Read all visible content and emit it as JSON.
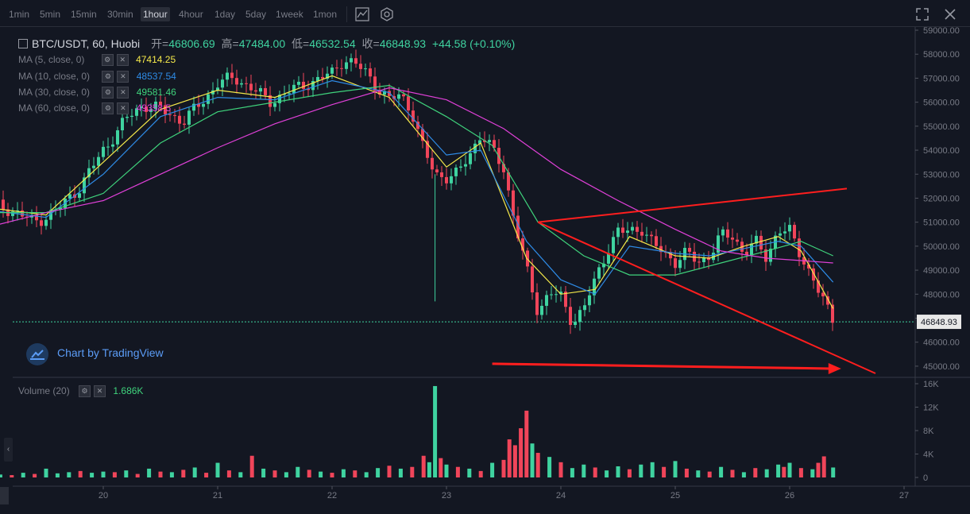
{
  "toolbar": {
    "intervals": [
      "1min",
      "5min",
      "15min",
      "30min",
      "1hour",
      "4hour",
      "1day",
      "5day",
      "1week",
      "1mon"
    ],
    "active_interval": "1hour"
  },
  "header": {
    "title": "BTC/USDT, 60, Huobi",
    "open_label": "开=",
    "open": "46806.69",
    "high_label": "高=",
    "high": "47484.00",
    "low_label": "低=",
    "low": "46532.54",
    "close_label": "收=",
    "close": "46848.93",
    "change": "+44.58 (+0.10%)"
  },
  "indicators": [
    {
      "label": "MA (5, close, 0)",
      "value": "47414.25",
      "color": "#f5e94a"
    },
    {
      "label": "MA (10, close, 0)",
      "value": "48537.54",
      "color": "#2e8be6"
    },
    {
      "label": "MA (30, close, 0)",
      "value": "49581.46",
      "color": "#3fd37c"
    },
    {
      "label": "MA (60, close, 0)",
      "value": "49358.5",
      "color": "#e040d8"
    }
  ],
  "volume": {
    "label": "Volume (20)",
    "value": "1.686K"
  },
  "watermark": "Chart by TradingView",
  "price_tag": "46848.93",
  "chart_data": {
    "type": "candlestick",
    "price_axis": {
      "ticks": [
        "59000.00",
        "58000.00",
        "57000.00",
        "56000.00",
        "55000.00",
        "54000.00",
        "53000.00",
        "52000.00",
        "51000.00",
        "50000.00",
        "49000.00",
        "48000.00",
        "47000.00",
        "46000.00",
        "45000.00"
      ],
      "range": [
        44600,
        59100
      ]
    },
    "volume_axis": {
      "ticks": [
        "16K",
        "12K",
        "8K",
        "4K",
        "0"
      ],
      "range": [
        0,
        16000
      ]
    },
    "x_ticks": [
      "20",
      "21",
      "22",
      "23",
      "24",
      "25",
      "26",
      "27"
    ],
    "last_price": 46848.93,
    "colors": {
      "up": "#26a69a",
      "down": "#ef5350",
      "bull_candle": "#3fd3a0",
      "bear_candle": "#f0455a",
      "annotation": "#ff1e1e"
    },
    "price_path": [
      [
        19.0,
        51800
      ],
      [
        19.2,
        51500
      ],
      [
        19.4,
        51000
      ],
      [
        19.6,
        51500
      ],
      [
        19.8,
        52500
      ],
      [
        20.0,
        54000
      ],
      [
        20.2,
        55300
      ],
      [
        20.35,
        55900
      ],
      [
        20.5,
        55700
      ],
      [
        20.7,
        55200
      ],
      [
        20.9,
        56200
      ],
      [
        21.0,
        56800
      ],
      [
        21.15,
        57000
      ],
      [
        21.3,
        56600
      ],
      [
        21.45,
        56000
      ],
      [
        21.6,
        56400
      ],
      [
        21.8,
        56800
      ],
      [
        22.0,
        57200
      ],
      [
        22.1,
        57800
      ],
      [
        22.2,
        57600
      ],
      [
        22.3,
        57200
      ],
      [
        22.4,
        56600
      ],
      [
        22.5,
        56100
      ],
      [
        22.6,
        56300
      ],
      [
        22.7,
        55600
      ],
      [
        22.8,
        54000
      ],
      [
        22.9,
        53000
      ],
      [
        23.0,
        52900
      ],
      [
        23.1,
        53000
      ],
      [
        23.2,
        53800
      ],
      [
        23.3,
        54700
      ],
      [
        23.4,
        54000
      ],
      [
        23.5,
        53200
      ],
      [
        23.6,
        51000
      ],
      [
        23.7,
        49000
      ],
      [
        23.8,
        47200
      ],
      [
        23.9,
        48200
      ],
      [
        24.0,
        47800
      ],
      [
        24.1,
        46800
      ],
      [
        24.2,
        47500
      ],
      [
        24.3,
        48500
      ],
      [
        24.4,
        49800
      ],
      [
        24.5,
        50700
      ],
      [
        24.6,
        50500
      ],
      [
        24.7,
        50800
      ],
      [
        24.8,
        50200
      ],
      [
        24.9,
        49600
      ],
      [
        25.0,
        49400
      ],
      [
        25.1,
        49800
      ],
      [
        25.2,
        49200
      ],
      [
        25.3,
        49700
      ],
      [
        25.4,
        50500
      ],
      [
        25.5,
        50300
      ],
      [
        25.6,
        49800
      ],
      [
        25.7,
        50200
      ],
      [
        25.8,
        49400
      ],
      [
        25.9,
        50800
      ],
      [
        26.0,
        50600
      ],
      [
        26.1,
        49500
      ],
      [
        26.2,
        48800
      ],
      [
        26.3,
        47600
      ],
      [
        26.38,
        46850
      ]
    ],
    "ma_lines": [
      {
        "name": "MA (5, close, 0)",
        "color": "#f5e94a",
        "points": [
          [
            19.0,
            51600
          ],
          [
            19.5,
            51300
          ],
          [
            20.0,
            53500
          ],
          [
            20.5,
            55700
          ],
          [
            21.0,
            56500
          ],
          [
            21.5,
            56200
          ],
          [
            22.0,
            57100
          ],
          [
            22.5,
            56200
          ],
          [
            23.0,
            53300
          ],
          [
            23.3,
            54300
          ],
          [
            23.7,
            49500
          ],
          [
            24.0,
            48000
          ],
          [
            24.3,
            48200
          ],
          [
            24.6,
            50400
          ],
          [
            25.0,
            49600
          ],
          [
            25.3,
            49500
          ],
          [
            25.6,
            50000
          ],
          [
            25.9,
            50400
          ],
          [
            26.1,
            49800
          ],
          [
            26.38,
            47400
          ]
        ]
      },
      {
        "name": "MA (10, close, 0)",
        "color": "#2e8be6",
        "points": [
          [
            19.0,
            51500
          ],
          [
            19.5,
            51200
          ],
          [
            20.0,
            53000
          ],
          [
            20.5,
            55400
          ],
          [
            21.0,
            56200
          ],
          [
            21.5,
            56100
          ],
          [
            22.0,
            56900
          ],
          [
            22.5,
            56400
          ],
          [
            23.0,
            53800
          ],
          [
            23.3,
            54000
          ],
          [
            23.7,
            50200
          ],
          [
            24.0,
            48600
          ],
          [
            24.3,
            48000
          ],
          [
            24.6,
            50000
          ],
          [
            25.0,
            49700
          ],
          [
            25.3,
            49600
          ],
          [
            25.6,
            49900
          ],
          [
            25.9,
            50200
          ],
          [
            26.1,
            50000
          ],
          [
            26.38,
            48500
          ]
        ]
      },
      {
        "name": "MA (30, close, 0)",
        "color": "#3fd37c",
        "points": [
          [
            19.0,
            51400
          ],
          [
            19.5,
            51400
          ],
          [
            20.0,
            52200
          ],
          [
            20.5,
            54300
          ],
          [
            21.0,
            55600
          ],
          [
            21.5,
            56000
          ],
          [
            22.0,
            56400
          ],
          [
            22.5,
            56700
          ],
          [
            23.0,
            55400
          ],
          [
            23.4,
            54200
          ],
          [
            23.8,
            51000
          ],
          [
            24.2,
            49600
          ],
          [
            24.6,
            48800
          ],
          [
            25.0,
            48800
          ],
          [
            25.4,
            49300
          ],
          [
            25.8,
            49800
          ],
          [
            26.1,
            50200
          ],
          [
            26.38,
            49600
          ]
        ]
      },
      {
        "name": "MA (60, close, 0)",
        "color": "#e040d8",
        "points": [
          [
            19.0,
            50800
          ],
          [
            19.5,
            51400
          ],
          [
            20.0,
            51900
          ],
          [
            20.5,
            53000
          ],
          [
            21.0,
            54100
          ],
          [
            21.5,
            55100
          ],
          [
            22.0,
            55900
          ],
          [
            22.5,
            56600
          ],
          [
            23.0,
            56100
          ],
          [
            23.5,
            54900
          ],
          [
            24.0,
            53200
          ],
          [
            24.5,
            51900
          ],
          [
            25.0,
            50700
          ],
          [
            25.4,
            49800
          ],
          [
            25.8,
            49500
          ],
          [
            26.1,
            49400
          ],
          [
            26.38,
            49300
          ]
        ]
      }
    ],
    "volume_bars": [
      [
        19.0,
        300,
        0
      ],
      [
        19.1,
        500,
        1
      ],
      [
        19.2,
        400,
        0
      ],
      [
        19.3,
        800,
        1
      ],
      [
        19.4,
        600,
        0
      ],
      [
        19.5,
        1500,
        1
      ],
      [
        19.6,
        700,
        1
      ],
      [
        19.7,
        900,
        1
      ],
      [
        19.8,
        1100,
        0
      ],
      [
        19.9,
        800,
        1
      ],
      [
        20.0,
        1000,
        1
      ],
      [
        20.1,
        900,
        0
      ],
      [
        20.2,
        1200,
        1
      ],
      [
        20.3,
        600,
        0
      ],
      [
        20.4,
        1500,
        1
      ],
      [
        20.5,
        1000,
        0
      ],
      [
        20.6,
        900,
        1
      ],
      [
        20.7,
        1300,
        0
      ],
      [
        20.8,
        1700,
        1
      ],
      [
        20.9,
        800,
        0
      ],
      [
        21.0,
        2500,
        1
      ],
      [
        21.1,
        1200,
        0
      ],
      [
        21.2,
        900,
        1
      ],
      [
        21.3,
        3700,
        0
      ],
      [
        21.4,
        1500,
        1
      ],
      [
        21.5,
        1200,
        0
      ],
      [
        21.6,
        900,
        1
      ],
      [
        21.7,
        1800,
        1
      ],
      [
        21.8,
        1300,
        0
      ],
      [
        21.9,
        1000,
        1
      ],
      [
        22.0,
        800,
        0
      ],
      [
        22.1,
        1400,
        1
      ],
      [
        22.2,
        1200,
        0
      ],
      [
        22.3,
        900,
        1
      ],
      [
        22.4,
        1600,
        1
      ],
      [
        22.5,
        2000,
        0
      ],
      [
        22.6,
        1500,
        1
      ],
      [
        22.7,
        1800,
        0
      ],
      [
        22.8,
        3700,
        0
      ],
      [
        22.85,
        2600,
        1
      ],
      [
        22.9,
        15600,
        1
      ],
      [
        22.95,
        3300,
        0
      ],
      [
        23.0,
        2200,
        1
      ],
      [
        23.1,
        1800,
        0
      ],
      [
        23.2,
        1500,
        1
      ],
      [
        23.3,
        1100,
        0
      ],
      [
        23.4,
        2500,
        1
      ],
      [
        23.5,
        3000,
        0
      ],
      [
        23.55,
        6500,
        0
      ],
      [
        23.6,
        5500,
        0
      ],
      [
        23.65,
        8400,
        0
      ],
      [
        23.7,
        11400,
        0
      ],
      [
        23.75,
        5800,
        1
      ],
      [
        23.8,
        4200,
        0
      ],
      [
        23.9,
        3500,
        1
      ],
      [
        24.0,
        2600,
        0
      ],
      [
        24.1,
        1600,
        1
      ],
      [
        24.2,
        2200,
        1
      ],
      [
        24.3,
        1700,
        0
      ],
      [
        24.4,
        1200,
        1
      ],
      [
        24.5,
        1900,
        1
      ],
      [
        24.6,
        1400,
        0
      ],
      [
        24.7,
        2200,
        1
      ],
      [
        24.8,
        2600,
        1
      ],
      [
        24.9,
        1800,
        0
      ],
      [
        25.0,
        2800,
        1
      ],
      [
        25.1,
        1500,
        0
      ],
      [
        25.2,
        1200,
        1
      ],
      [
        25.3,
        1000,
        0
      ],
      [
        25.4,
        1800,
        1
      ],
      [
        25.5,
        1300,
        0
      ],
      [
        25.6,
        900,
        1
      ],
      [
        25.7,
        1600,
        0
      ],
      [
        25.8,
        1400,
        1
      ],
      [
        25.9,
        2200,
        1
      ],
      [
        25.95,
        1800,
        0
      ],
      [
        26.0,
        2500,
        1
      ],
      [
        26.1,
        1600,
        0
      ],
      [
        26.2,
        1400,
        1
      ],
      [
        26.25,
        2500,
        0
      ],
      [
        26.3,
        3600,
        0
      ],
      [
        26.38,
        1700,
        1
      ]
    ],
    "annotations": [
      {
        "type": "line",
        "from": [
          23.8,
          51000
        ],
        "to": [
          26.5,
          52400
        ]
      },
      {
        "type": "line",
        "from": [
          23.8,
          51000
        ],
        "to": [
          26.75,
          44700
        ]
      },
      {
        "type": "arrow",
        "from": [
          23.4,
          45100
        ],
        "to": [
          26.45,
          44900
        ]
      }
    ]
  }
}
